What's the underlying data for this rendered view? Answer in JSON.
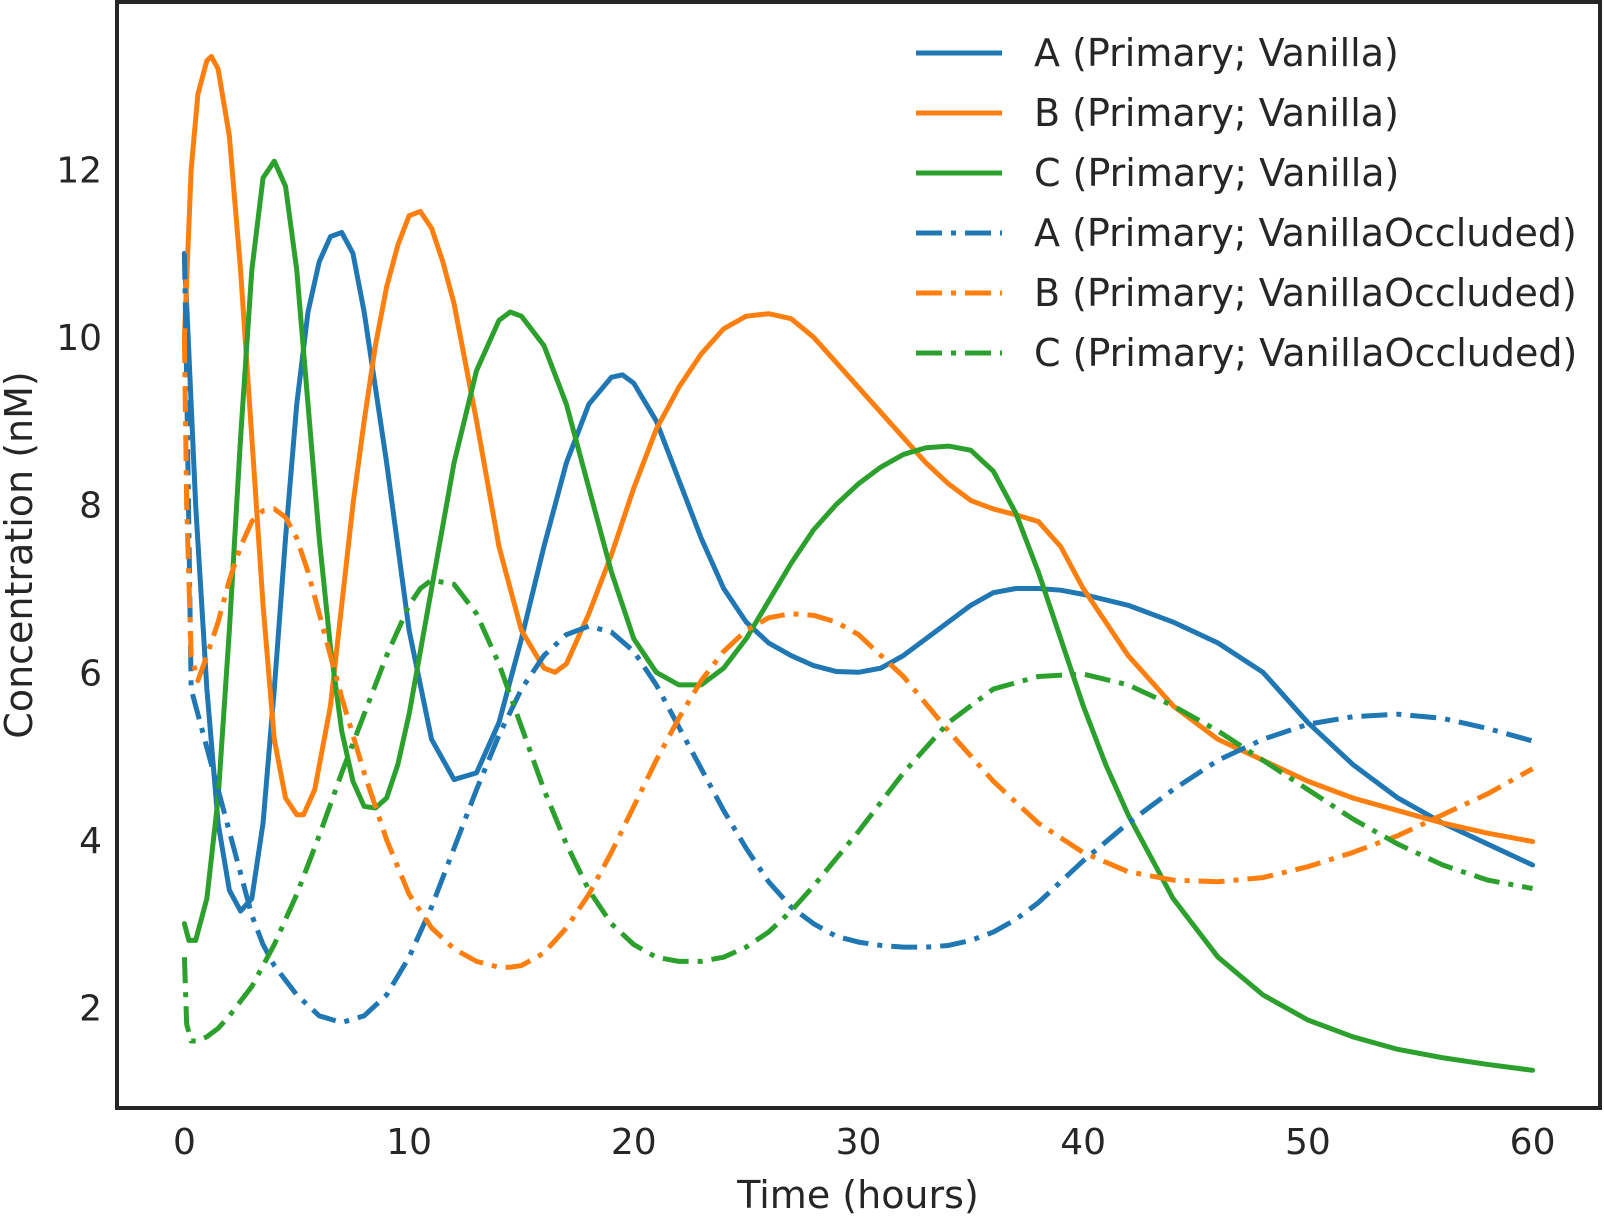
{
  "chart_data": {
    "type": "line",
    "title": "",
    "xlabel": "Time (hours)",
    "ylabel": "Concentration (nM)",
    "xlim": [
      -3,
      63
    ],
    "ylim": [
      0.8,
      14.0
    ],
    "xticks": [
      0,
      10,
      20,
      30,
      40,
      50,
      60
    ],
    "yticks": [
      2,
      4,
      6,
      8,
      10,
      12
    ],
    "grid": false,
    "legend_position": "top-right",
    "series": [
      {
        "name": "A (Primary; Vanilla)",
        "color": "#1f77b4",
        "dash": "solid",
        "x": [
          0,
          0.5,
          1,
          1.5,
          2,
          2.5,
          3,
          3.5,
          4,
          4.5,
          5,
          5.5,
          6,
          6.5,
          7,
          7.5,
          8,
          9,
          10,
          11,
          12,
          13,
          14,
          15,
          16,
          17,
          18,
          19,
          19.5,
          20,
          21,
          22,
          23,
          24,
          25,
          26,
          27,
          28,
          29,
          30,
          31,
          32,
          33,
          34,
          35,
          36,
          37,
          38,
          39,
          40,
          42,
          44,
          46,
          48,
          50,
          52,
          54,
          56,
          58,
          60
        ],
        "y": [
          11.0,
          8.0,
          5.8,
          4.2,
          3.4,
          3.15,
          3.3,
          4.2,
          5.8,
          7.6,
          9.2,
          10.3,
          10.9,
          11.2,
          11.25,
          11.0,
          10.3,
          8.5,
          6.5,
          5.2,
          4.72,
          4.8,
          5.4,
          6.4,
          7.5,
          8.5,
          9.2,
          9.52,
          9.55,
          9.45,
          9.0,
          8.3,
          7.6,
          7.0,
          6.6,
          6.35,
          6.2,
          6.08,
          6.01,
          6.0,
          6.05,
          6.2,
          6.4,
          6.6,
          6.8,
          6.95,
          7.0,
          7.0,
          6.98,
          6.93,
          6.8,
          6.6,
          6.35,
          6.0,
          5.4,
          4.9,
          4.5,
          4.2,
          3.95,
          3.7
        ]
      },
      {
        "name": "B (Primary; Vanilla)",
        "color": "#ff7f0e",
        "dash": "solid",
        "x": [
          0,
          0.3,
          0.6,
          1,
          1.2,
          1.5,
          2,
          2.5,
          3,
          3.5,
          4,
          4.5,
          5,
          5.3,
          5.8,
          6.5,
          7,
          7.5,
          8,
          8.5,
          9,
          9.5,
          10,
          10.5,
          11,
          11.5,
          12,
          13,
          14,
          15,
          16,
          16.5,
          17,
          18,
          19,
          20,
          21,
          22,
          23,
          24,
          25,
          26,
          27,
          28,
          29,
          30,
          31,
          32,
          33,
          34,
          35,
          36,
          37,
          38,
          39,
          40,
          42,
          44,
          46,
          48,
          50,
          52,
          54,
          56,
          58,
          60
        ],
        "y": [
          10.0,
          12.0,
          12.9,
          13.3,
          13.35,
          13.2,
          12.4,
          10.8,
          8.8,
          6.8,
          5.2,
          4.5,
          4.3,
          4.3,
          4.6,
          5.6,
          6.8,
          8.0,
          9.0,
          9.9,
          10.6,
          11.1,
          11.45,
          11.5,
          11.3,
          10.9,
          10.4,
          9.0,
          7.5,
          6.5,
          6.05,
          6.0,
          6.1,
          6.7,
          7.4,
          8.2,
          8.9,
          9.4,
          9.8,
          10.1,
          10.25,
          10.28,
          10.22,
          10.0,
          9.7,
          9.4,
          9.1,
          8.8,
          8.5,
          8.25,
          8.05,
          7.95,
          7.88,
          7.8,
          7.5,
          7.0,
          6.2,
          5.6,
          5.2,
          4.95,
          4.7,
          4.5,
          4.35,
          4.2,
          4.08,
          3.98
        ]
      },
      {
        "name": "C (Primary; Vanilla)",
        "color": "#2ca02c",
        "dash": "solid",
        "x": [
          0,
          0.2,
          0.5,
          1,
          1.5,
          2,
          2.5,
          3,
          3.5,
          4,
          4.5,
          5,
          5.5,
          6,
          6.5,
          7,
          7.5,
          8,
          8.5,
          9,
          9.5,
          10,
          11,
          12,
          13,
          14,
          14.5,
          15,
          16,
          17,
          18,
          19,
          20,
          21,
          22,
          23,
          24,
          25,
          26,
          27,
          28,
          29,
          30,
          31,
          32,
          33,
          34,
          35,
          36,
          37,
          38,
          39,
          40,
          41,
          42,
          44,
          46,
          48,
          50,
          52,
          54,
          56,
          58,
          60
        ],
        "y": [
          3.0,
          2.8,
          2.8,
          3.3,
          4.5,
          6.5,
          8.8,
          10.8,
          11.9,
          12.1,
          11.8,
          10.8,
          9.2,
          7.6,
          6.3,
          5.3,
          4.7,
          4.4,
          4.38,
          4.5,
          4.9,
          5.5,
          7.0,
          8.5,
          9.6,
          10.2,
          10.3,
          10.25,
          9.9,
          9.2,
          8.2,
          7.2,
          6.4,
          6.0,
          5.85,
          5.85,
          6.05,
          6.4,
          6.85,
          7.3,
          7.7,
          8.0,
          8.25,
          8.45,
          8.6,
          8.68,
          8.7,
          8.65,
          8.4,
          7.9,
          7.2,
          6.4,
          5.6,
          4.9,
          4.3,
          3.3,
          2.6,
          2.15,
          1.85,
          1.65,
          1.5,
          1.4,
          1.32,
          1.25
        ]
      },
      {
        "name": "A (Primary; VanillaOccluded)",
        "color": "#1f77b4",
        "dash": "dashdot",
        "x": [
          0,
          0.1,
          0.3,
          0.6,
          1,
          1.5,
          2,
          2.5,
          3,
          3.5,
          4,
          5,
          6,
          7,
          8,
          9,
          10,
          11,
          12,
          13,
          14,
          15,
          16,
          17,
          18,
          19,
          20,
          21,
          22,
          23,
          24,
          25,
          26,
          27,
          28,
          29,
          30,
          31,
          32,
          33,
          34,
          35,
          36,
          37,
          38,
          40,
          42,
          44,
          46,
          48,
          50,
          52,
          54,
          56,
          58,
          60
        ],
        "y": [
          11.0,
          9.5,
          5.8,
          5.5,
          5.1,
          4.6,
          4.1,
          3.6,
          3.1,
          2.75,
          2.5,
          2.15,
          1.9,
          1.82,
          1.9,
          2.15,
          2.6,
          3.2,
          3.9,
          4.6,
          5.25,
          5.8,
          6.2,
          6.45,
          6.55,
          6.48,
          6.25,
          5.85,
          5.35,
          4.85,
          4.35,
          3.9,
          3.5,
          3.2,
          3.0,
          2.85,
          2.78,
          2.74,
          2.72,
          2.72,
          2.74,
          2.8,
          2.9,
          3.05,
          3.25,
          3.75,
          4.2,
          4.6,
          4.95,
          5.2,
          5.38,
          5.47,
          5.5,
          5.45,
          5.33,
          5.18
        ]
      },
      {
        "name": "B (Primary; VanillaOccluded)",
        "color": "#ff7f0e",
        "dash": "dashdot",
        "x": [
          0,
          0.1,
          0.3,
          0.6,
          1,
          1.5,
          2,
          2.5,
          3,
          3.5,
          4,
          4.5,
          5,
          5.5,
          6,
          6.5,
          7,
          8,
          9,
          10,
          11,
          12,
          13,
          14,
          14.5,
          15,
          16,
          17,
          18,
          19,
          20,
          21,
          22,
          23,
          24,
          25,
          26,
          27,
          28,
          29,
          30,
          32,
          34,
          36,
          38,
          40,
          42,
          44,
          46,
          48,
          50,
          52,
          54,
          56,
          58,
          60
        ],
        "y": [
          10.0,
          8.0,
          6.2,
          5.9,
          6.2,
          6.6,
          7.1,
          7.5,
          7.8,
          7.93,
          7.95,
          7.85,
          7.6,
          7.2,
          6.7,
          6.2,
          5.7,
          4.8,
          4.0,
          3.35,
          2.95,
          2.7,
          2.55,
          2.48,
          2.48,
          2.5,
          2.65,
          2.95,
          3.35,
          3.85,
          4.4,
          4.95,
          5.45,
          5.9,
          6.25,
          6.5,
          6.65,
          6.7,
          6.68,
          6.6,
          6.45,
          5.95,
          5.3,
          4.7,
          4.2,
          3.85,
          3.62,
          3.52,
          3.5,
          3.55,
          3.68,
          3.85,
          4.05,
          4.3,
          4.55,
          4.85
        ]
      },
      {
        "name": "C (Primary; VanillaOccluded)",
        "color": "#2ca02c",
        "dash": "dashdot",
        "x": [
          0,
          0.1,
          0.3,
          0.6,
          1,
          1.5,
          2,
          3,
          4,
          5,
          6,
          7,
          8,
          9,
          10,
          10.5,
          11,
          12,
          13,
          14,
          15,
          16,
          17,
          18,
          19,
          20,
          21,
          22,
          23,
          24,
          25,
          26,
          27,
          28,
          30,
          32,
          34,
          36,
          38,
          40,
          42,
          44,
          46,
          48,
          50,
          52,
          54,
          56,
          58,
          60
        ],
        "y": [
          2.6,
          1.8,
          1.6,
          1.6,
          1.65,
          1.75,
          1.9,
          2.25,
          2.75,
          3.35,
          4.05,
          4.8,
          5.5,
          6.2,
          6.8,
          7.0,
          7.1,
          7.05,
          6.7,
          6.1,
          5.35,
          4.6,
          3.95,
          3.4,
          3.0,
          2.75,
          2.6,
          2.55,
          2.55,
          2.6,
          2.72,
          2.9,
          3.15,
          3.45,
          4.1,
          4.8,
          5.4,
          5.8,
          5.95,
          5.98,
          5.85,
          5.6,
          5.3,
          4.95,
          4.6,
          4.25,
          3.95,
          3.7,
          3.52,
          3.42
        ]
      }
    ]
  }
}
